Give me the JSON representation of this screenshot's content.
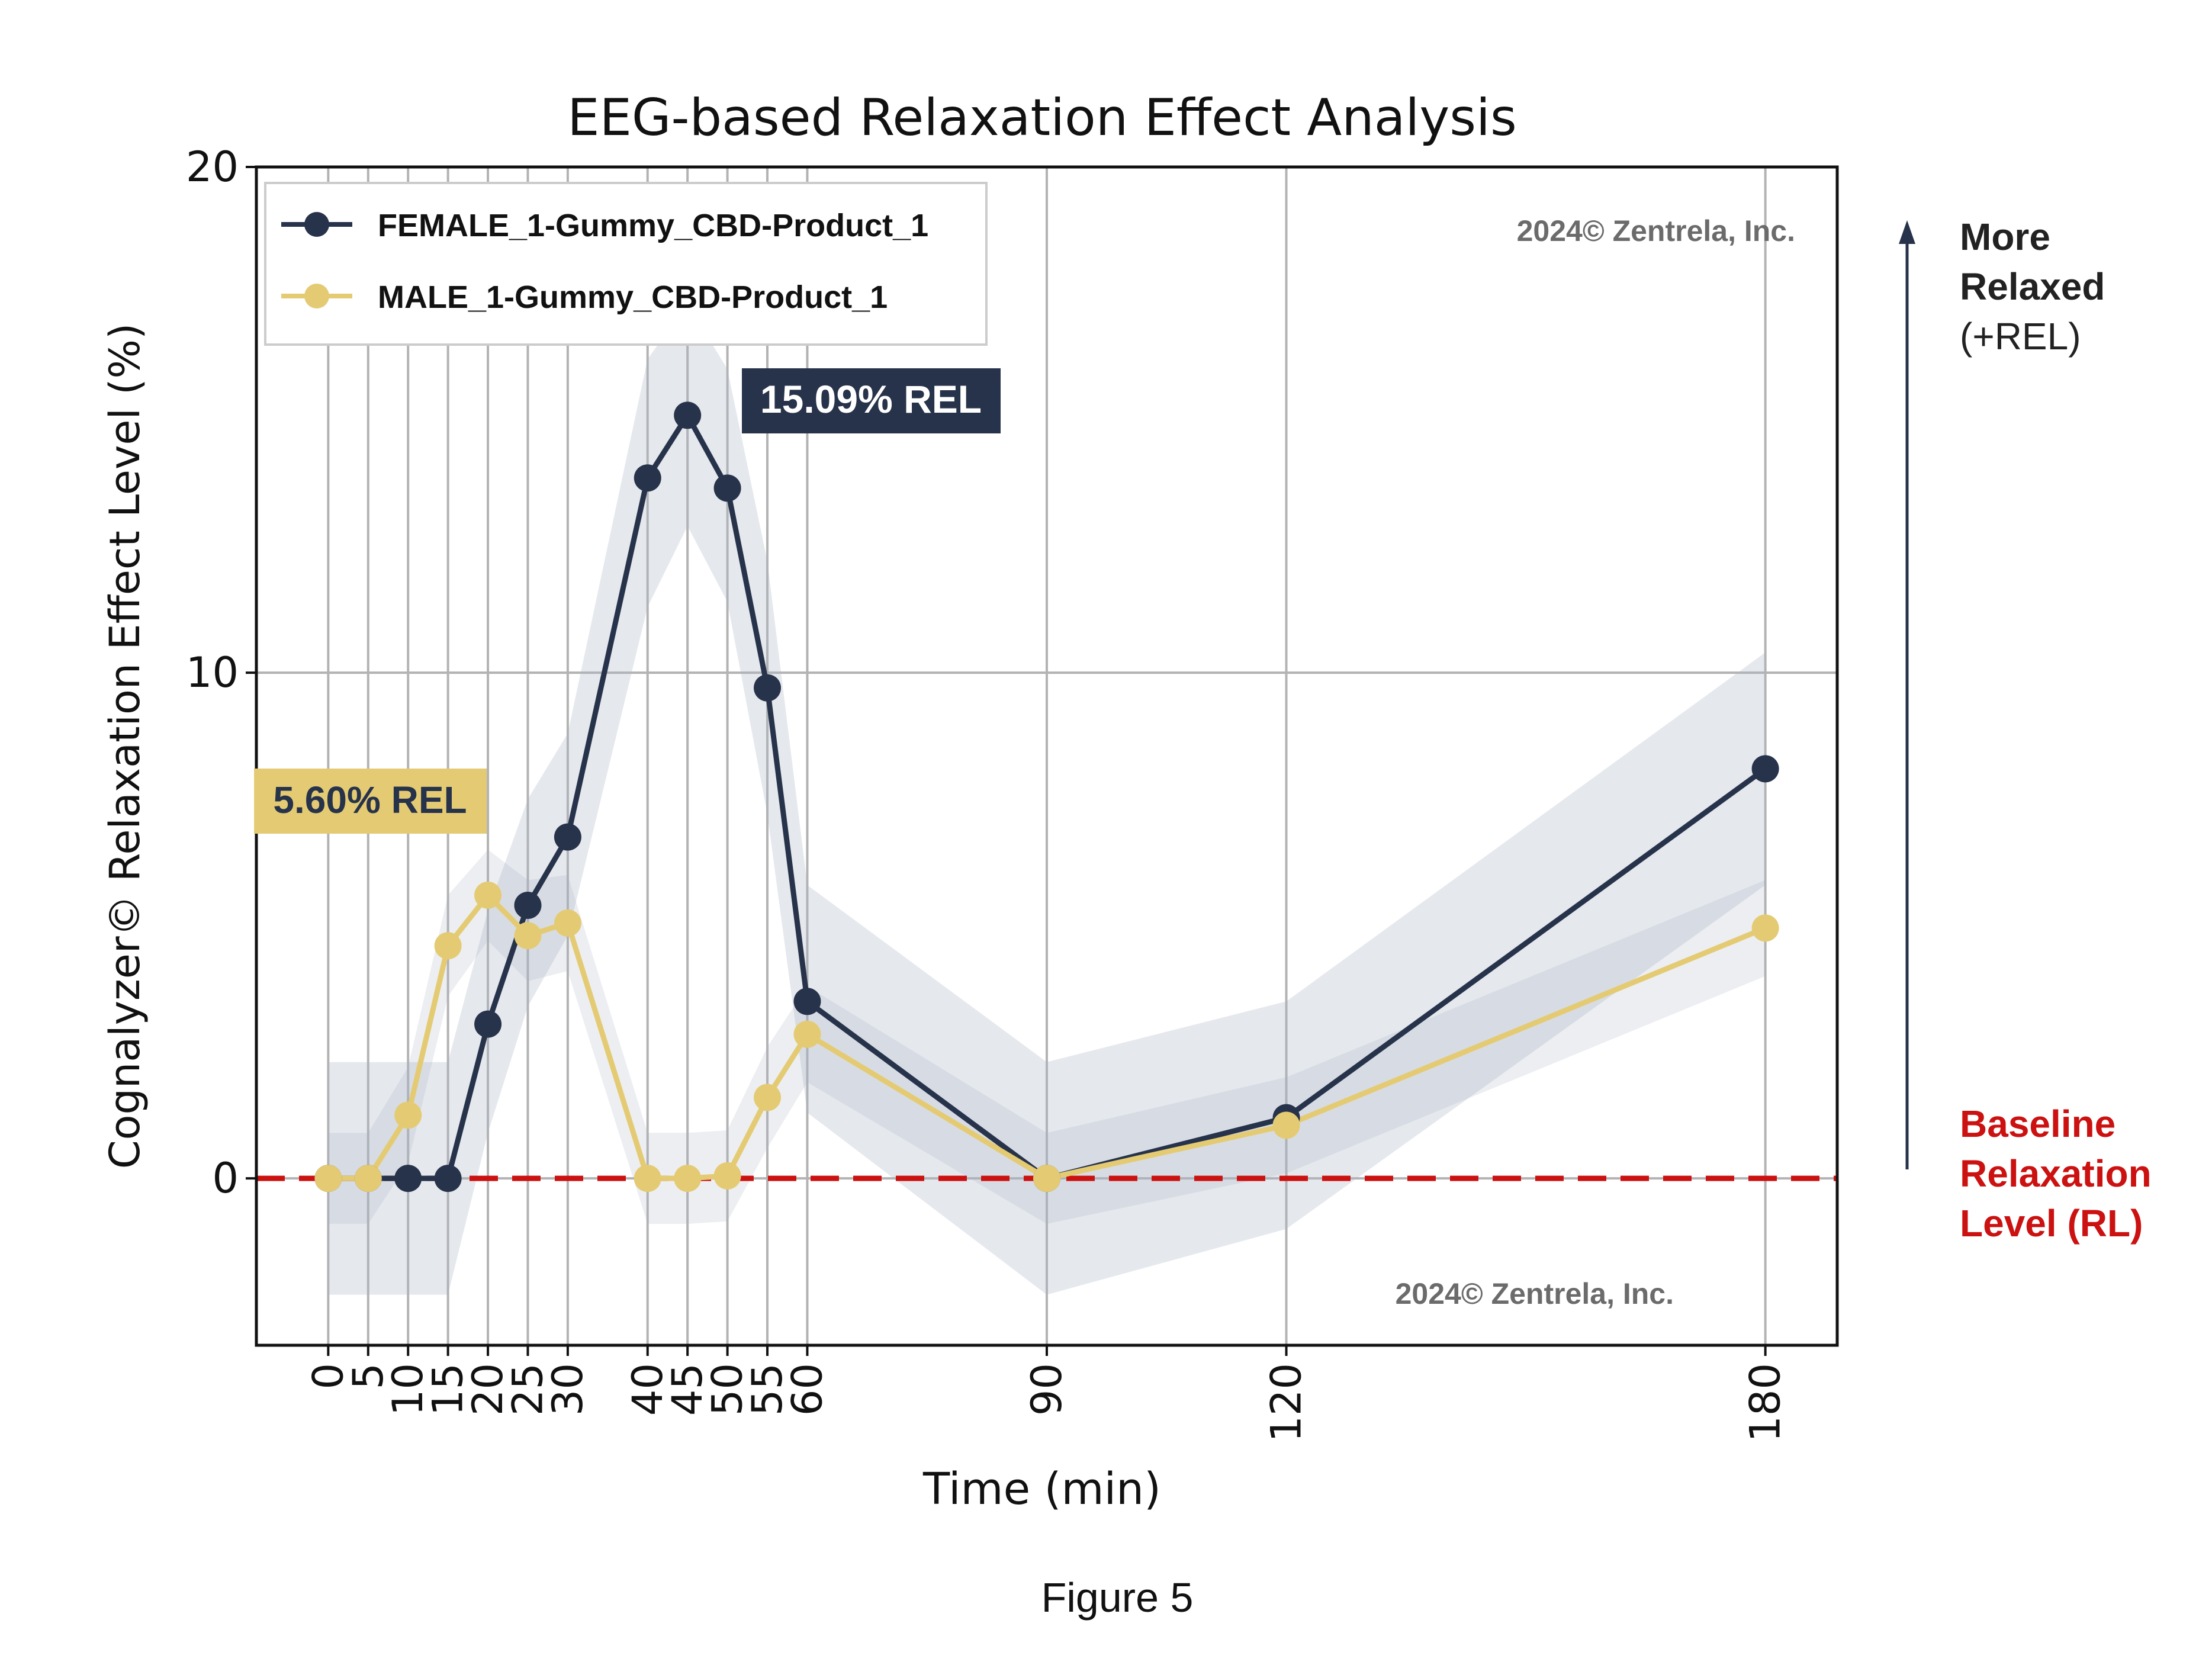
{
  "chart_data": {
    "type": "line",
    "title": "EEG-based Relaxation Effect Analysis",
    "xlabel": "Time (min)",
    "ylabel": "Cognalyzer© Relaxation Effect Level (%)",
    "xlim": [
      -9,
      189
    ],
    "ylim": [
      -3.3,
      20
    ],
    "x_ticks": [
      0,
      5,
      10,
      15,
      20,
      25,
      30,
      40,
      45,
      50,
      55,
      60,
      90,
      120,
      180
    ],
    "y_ticks": [
      0,
      10,
      20
    ],
    "grid": true,
    "legend_position": "top-left",
    "x": [
      0,
      5,
      10,
      15,
      20,
      25,
      30,
      40,
      45,
      50,
      55,
      60,
      90,
      120,
      180
    ],
    "series": [
      {
        "name": "FEMALE_1-Gummy_CBD-Product_1",
        "color": "#27334a",
        "values": [
          0,
          0,
          0,
          0,
          3.05,
          5.4,
          6.75,
          13.85,
          15.09,
          13.65,
          9.7,
          3.5,
          0,
          1.2,
          8.1
        ],
        "band_upper": [
          2.3,
          2.3,
          2.3,
          2.3,
          5.3,
          7.5,
          8.8,
          16.2,
          17.3,
          16.0,
          12.2,
          5.8,
          2.3,
          3.5,
          10.4
        ],
        "band_lower": [
          -2.3,
          -2.3,
          -2.3,
          -2.3,
          0.9,
          3.4,
          4.8,
          11.3,
          12.9,
          11.4,
          7.2,
          1.3,
          -2.3,
          -1.0,
          5.8
        ]
      },
      {
        "name": "MALE_1-Gummy_CBD-Product_1",
        "color": "#e4cb73",
        "values": [
          0,
          0,
          1.25,
          4.6,
          5.6,
          4.8,
          5.05,
          0,
          0,
          0.05,
          1.6,
          2.85,
          0,
          1.05,
          4.95
        ],
        "band_upper": [
          0.9,
          0.9,
          2.2,
          5.6,
          6.5,
          5.9,
          6.0,
          0.9,
          0.9,
          0.95,
          2.6,
          3.8,
          0.9,
          2.0,
          5.9
        ],
        "band_lower": [
          -0.9,
          -0.9,
          0.3,
          3.6,
          4.7,
          3.9,
          4.1,
          -0.9,
          -0.9,
          -0.85,
          0.6,
          1.9,
          -0.9,
          0.1,
          4.0
        ]
      }
    ],
    "baseline": {
      "y": 0,
      "color": "#cc1111"
    },
    "annotations": {
      "female_peak": {
        "text": "15.09% REL",
        "bg_color": "#27334a",
        "text_color": "#ffffff"
      },
      "male_peak": {
        "text": "5.60% REL",
        "bg_color": "#e4cb73",
        "text_color": "#27334a"
      },
      "watermark_top": "2024© Zentrela, Inc.",
      "watermark_bottom": "2024© Zentrela, Inc."
    },
    "side_labels": {
      "more_relaxed_line1": "More",
      "more_relaxed_line2": "Relaxed",
      "more_relaxed_line3": "(+REL)",
      "baseline_line1": "Baseline",
      "baseline_line2": "Relaxation",
      "baseline_line3": "Level (RL)",
      "baseline_color": "#cc1111"
    },
    "caption": "Figure 5"
  }
}
